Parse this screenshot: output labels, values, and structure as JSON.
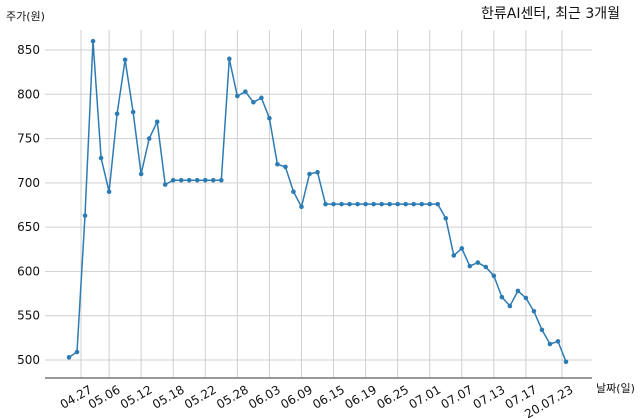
{
  "chart_data": {
    "type": "line",
    "title": "한류AI센터, 최근 3개월",
    "ylabel": "주가(원)",
    "xlabel": "날짜(일)",
    "ylim": [
      480,
      870
    ],
    "yticks": [
      500,
      550,
      600,
      650,
      700,
      750,
      800,
      850
    ],
    "grid": true,
    "line_color": "#2d7bb3",
    "xtick_labels": [
      "04.27",
      "05.06",
      "05.12",
      "05.18",
      "05.22",
      "05.28",
      "06.03",
      "06.09",
      "06.15",
      "06.19",
      "06.25",
      "07.01",
      "07.07",
      "07.13",
      "07.17",
      "20.07.23"
    ],
    "xtick_index": [
      1.5,
      5,
      9,
      13,
      17,
      21,
      25,
      29,
      33,
      37,
      41,
      45,
      49,
      53,
      57,
      61.5
    ],
    "values": [
      503,
      509,
      663,
      860,
      728,
      690,
      778,
      839,
      780,
      710,
      750,
      769,
      698,
      703,
      703,
      703,
      703,
      703,
      703,
      703,
      840,
      798,
      803,
      791,
      796,
      773,
      721,
      718,
      690,
      673,
      710,
      712,
      676,
      676,
      676,
      676,
      676,
      676,
      676,
      676,
      676,
      676,
      676,
      676,
      676,
      676,
      676,
      660,
      618,
      626,
      606,
      610,
      605,
      595,
      571,
      561,
      578,
      570,
      555,
      534,
      518,
      521,
      498
    ]
  }
}
